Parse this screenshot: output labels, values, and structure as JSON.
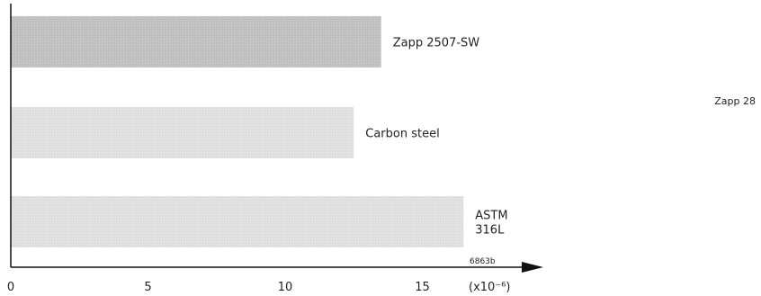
{
  "chart_data": {
    "type": "bar",
    "orientation": "horizontal",
    "categories": [
      "Zapp 2507-SW",
      "Carbon steel",
      "ASTM 316L"
    ],
    "values": [
      13.5,
      12.5,
      16.5
    ],
    "bar_colors": [
      "#c2c2c2",
      "#e2e2e2",
      "#e2e2e2"
    ],
    "xlim": [
      0,
      17
    ],
    "x_ticks": [
      0,
      5,
      10,
      15
    ],
    "unit_label": "(x10⁻⁶)",
    "code_label": "6863b",
    "grid": false
  },
  "side_label": "Zapp 28"
}
